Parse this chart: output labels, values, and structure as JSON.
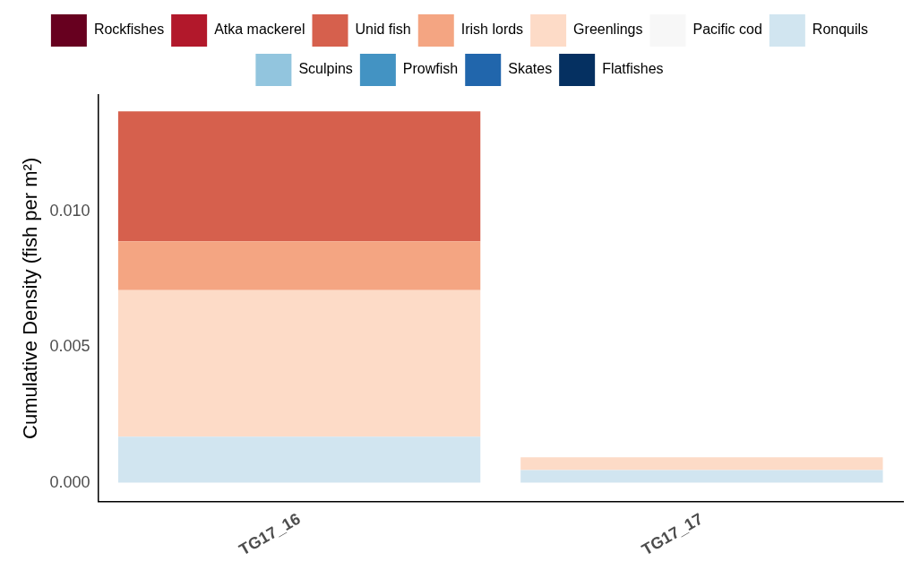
{
  "chart_data": {
    "type": "bar",
    "stacked": true,
    "categories": [
      "TG17_16",
      "TG17_17"
    ],
    "ylabel": "Cumulative Density (fish per m²)",
    "ylim": [
      -0.0007,
      0.0143
    ],
    "yticks": [
      {
        "value": 0,
        "label": "0.000"
      },
      {
        "value": 0.005,
        "label": "0.005"
      },
      {
        "value": 0.01,
        "label": "0.010"
      }
    ],
    "grid": false,
    "legend": "top",
    "series": [
      {
        "name": "Flatfishes",
        "color": "#053061",
        "values": [
          0,
          0
        ]
      },
      {
        "name": "Skates",
        "color": "#2166ac",
        "values": [
          0,
          0
        ]
      },
      {
        "name": "Prowfish",
        "color": "#4393c3",
        "values": [
          0,
          0
        ]
      },
      {
        "name": "Sculpins",
        "color": "#92c5de",
        "values": [
          0,
          0
        ]
      },
      {
        "name": "Ronquils",
        "color": "#d1e5f0",
        "values": [
          0.0017,
          0.00047
        ]
      },
      {
        "name": "Pacific cod",
        "color": "#f7f7f7",
        "values": [
          0,
          0
        ]
      },
      {
        "name": "Greenlings",
        "color": "#fddbc7",
        "values": [
          0.0054,
          0.00047
        ]
      },
      {
        "name": "Irish lords",
        "color": "#f4a582",
        "values": [
          0.0018,
          0
        ]
      },
      {
        "name": "Unid fish",
        "color": "#d6604d",
        "values": [
          0.0048,
          0
        ]
      },
      {
        "name": "Atka mackerel",
        "color": "#b2182b",
        "values": [
          0,
          0
        ]
      },
      {
        "name": "Rockfishes",
        "color": "#67001f",
        "values": [
          0,
          0
        ]
      }
    ]
  }
}
